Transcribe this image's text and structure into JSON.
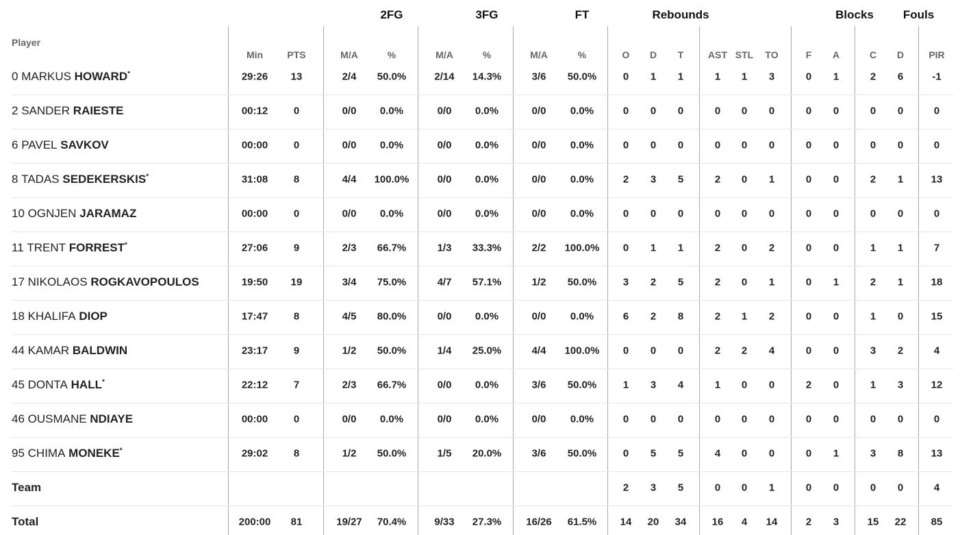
{
  "table": {
    "player_header": "Player",
    "groups": [
      {
        "label": "2FG",
        "col": 3
      },
      {
        "label": "3FG",
        "col": 5
      },
      {
        "label": "FT",
        "col": 7
      },
      {
        "label": "Rebounds",
        "col": 10
      },
      {
        "label": "Blocks",
        "col": 15.5
      },
      {
        "label": "Fouls",
        "col": 17.5
      }
    ],
    "columns": [
      "Min",
      "PTS",
      "M/A",
      "%",
      "M/A",
      "%",
      "M/A",
      "%",
      "O",
      "D",
      "T",
      "AST",
      "STL",
      "TO",
      "F",
      "A",
      "C",
      "D",
      "PIR"
    ],
    "players": [
      {
        "number": "0",
        "first": "MARKUS",
        "last": "HOWARD",
        "mark": "*",
        "stats": [
          "29:26",
          "13",
          "2/4",
          "50.0%",
          "2/14",
          "14.3%",
          "3/6",
          "50.0%",
          "0",
          "1",
          "1",
          "1",
          "1",
          "3",
          "0",
          "1",
          "2",
          "6",
          "-1"
        ]
      },
      {
        "number": "2",
        "first": "SANDER",
        "last": "RAIESTE",
        "stats": [
          "00:12",
          "0",
          "0/0",
          "0.0%",
          "0/0",
          "0.0%",
          "0/0",
          "0.0%",
          "0",
          "0",
          "0",
          "0",
          "0",
          "0",
          "0",
          "0",
          "0",
          "0",
          "0"
        ]
      },
      {
        "number": "6",
        "first": "PAVEL",
        "last": "SAVKOV",
        "stats": [
          "00:00",
          "0",
          "0/0",
          "0.0%",
          "0/0",
          "0.0%",
          "0/0",
          "0.0%",
          "0",
          "0",
          "0",
          "0",
          "0",
          "0",
          "0",
          "0",
          "0",
          "0",
          "0"
        ]
      },
      {
        "number": "8",
        "first": "TADAS",
        "last": "SEDEKERSKIS",
        "mark": "*",
        "stats": [
          "31:08",
          "8",
          "4/4",
          "100.0%",
          "0/0",
          "0.0%",
          "0/0",
          "0.0%",
          "2",
          "3",
          "5",
          "2",
          "0",
          "1",
          "0",
          "0",
          "2",
          "1",
          "13"
        ]
      },
      {
        "number": "10",
        "first": "OGNJEN",
        "last": "JARAMAZ",
        "stats": [
          "00:00",
          "0",
          "0/0",
          "0.0%",
          "0/0",
          "0.0%",
          "0/0",
          "0.0%",
          "0",
          "0",
          "0",
          "0",
          "0",
          "0",
          "0",
          "0",
          "0",
          "0",
          "0"
        ]
      },
      {
        "number": "11",
        "first": "TRENT",
        "last": "FORREST",
        "mark": "*",
        "stats": [
          "27:06",
          "9",
          "2/3",
          "66.7%",
          "1/3",
          "33.3%",
          "2/2",
          "100.0%",
          "0",
          "1",
          "1",
          "2",
          "0",
          "2",
          "0",
          "0",
          "1",
          "1",
          "7"
        ]
      },
      {
        "number": "17",
        "first": "NIKOLAOS",
        "last": "ROGKAVOPOULOS",
        "stats": [
          "19:50",
          "19",
          "3/4",
          "75.0%",
          "4/7",
          "57.1%",
          "1/2",
          "50.0%",
          "3",
          "2",
          "5",
          "2",
          "0",
          "1",
          "0",
          "1",
          "2",
          "1",
          "18"
        ]
      },
      {
        "number": "18",
        "first": "KHALIFA",
        "last": "DIOP",
        "stats": [
          "17:47",
          "8",
          "4/5",
          "80.0%",
          "0/0",
          "0.0%",
          "0/0",
          "0.0%",
          "6",
          "2",
          "8",
          "2",
          "1",
          "2",
          "0",
          "0",
          "1",
          "0",
          "15"
        ]
      },
      {
        "number": "44",
        "first": "KAMAR",
        "last": "BALDWIN",
        "stats": [
          "23:17",
          "9",
          "1/2",
          "50.0%",
          "1/4",
          "25.0%",
          "4/4",
          "100.0%",
          "0",
          "0",
          "0",
          "2",
          "2",
          "4",
          "0",
          "0",
          "3",
          "2",
          "4"
        ]
      },
      {
        "number": "45",
        "first": "DONTA",
        "last": "HALL",
        "mark": "*",
        "stats": [
          "22:12",
          "7",
          "2/3",
          "66.7%",
          "0/0",
          "0.0%",
          "3/6",
          "50.0%",
          "1",
          "3",
          "4",
          "1",
          "0",
          "0",
          "2",
          "0",
          "1",
          "3",
          "12"
        ]
      },
      {
        "number": "46",
        "first": "OUSMANE",
        "last": "NDIAYE",
        "stats": [
          "00:00",
          "0",
          "0/0",
          "0.0%",
          "0/0",
          "0.0%",
          "0/0",
          "0.0%",
          "0",
          "0",
          "0",
          "0",
          "0",
          "0",
          "0",
          "0",
          "0",
          "0",
          "0"
        ]
      },
      {
        "number": "95",
        "first": "CHIMA",
        "last": "MONEKE",
        "mark": "*",
        "stats": [
          "29:02",
          "8",
          "1/2",
          "50.0%",
          "1/5",
          "20.0%",
          "3/6",
          "50.0%",
          "0",
          "5",
          "5",
          "4",
          "0",
          "0",
          "0",
          "1",
          "3",
          "8",
          "13"
        ]
      }
    ],
    "team": {
      "label": "Team",
      "first_col": 8,
      "stats": [
        "2",
        "3",
        "5",
        "0",
        "0",
        "1",
        "0",
        "0",
        "0",
        "0",
        "4"
      ]
    },
    "total": {
      "label": "Total",
      "stats": [
        "200:00",
        "81",
        "19/27",
        "70.4%",
        "9/33",
        "27.3%",
        "16/26",
        "61.5%",
        "14",
        "20",
        "34",
        "16",
        "4",
        "14",
        "2",
        "3",
        "15",
        "22",
        "85"
      ]
    }
  }
}
